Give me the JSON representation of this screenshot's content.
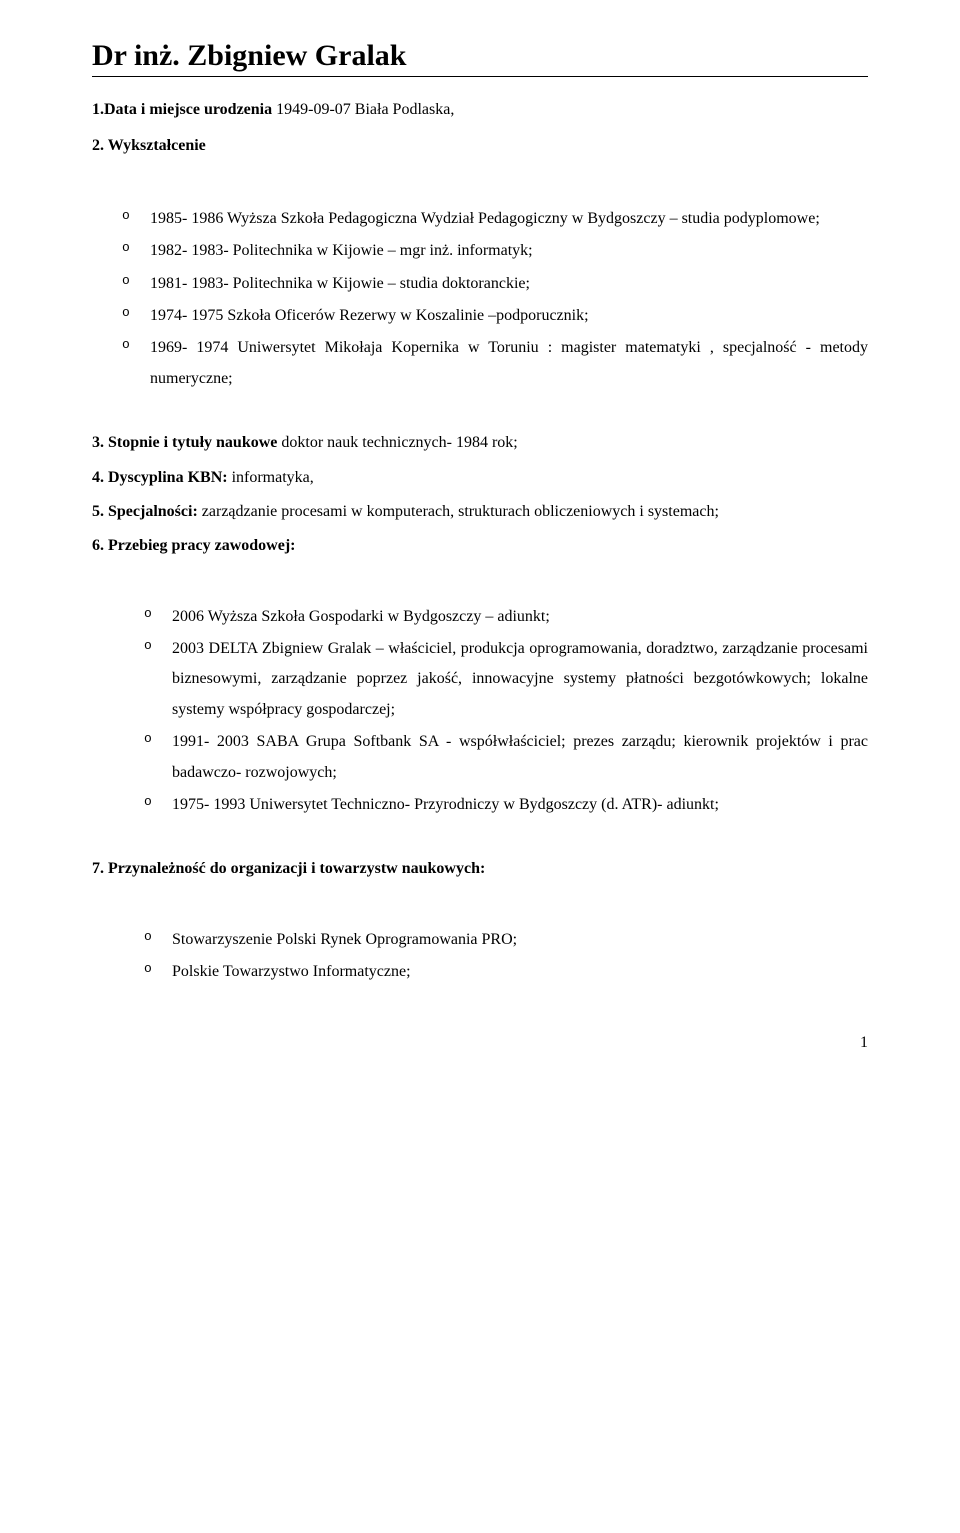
{
  "title": "Dr inż. Zbigniew Gralak",
  "sections": {
    "s1": {
      "label": "1.Data i miejsce urodzenia",
      "rest": "  1949-09-07 Biała Podlaska,"
    },
    "s2": {
      "label": "2. Wykształcenie"
    },
    "s2_items": [
      "1985- 1986 Wyższa Szkoła Pedagogiczna Wydział Pedagogiczny w Bydgoszczy – studia podyplomowe;",
      "1982- 1983- Politechnika w  Kijowie – mgr inż. informatyk;",
      "1981- 1983- Politechnika w Kijowie – studia doktoranckie;",
      "1974- 1975  Szkoła Oficerów Rezerwy w Koszalinie –podporucznik;",
      "1969- 1974  Uniwersytet Mikołaja Kopernika w Toruniu : magister matematyki , specjalność - metody numeryczne;"
    ],
    "s3": {
      "label": "3. Stopnie i tytuły naukowe",
      "rest": "  doktor nauk technicznych-  1984 rok;"
    },
    "s4": {
      "label": "4. Dyscyplina KBN:",
      "rest": " informatyka,"
    },
    "s5": {
      "label": "5. Specjalności:",
      "rest": " zarządzanie procesami w komputerach, strukturach obliczeniowych i systemach;"
    },
    "s6": {
      "label": "6. Przebieg pracy zawodowej:"
    },
    "s6_items": [
      "2006  Wyższa Szkoła Gospodarki w Bydgoszczy – adiunkt;",
      "2003 DELTA Zbigniew Gralak – właściciel, produkcja oprogramowania, doradztwo, zarządzanie procesami biznesowymi, zarządzanie poprzez jakość, innowacyjne systemy płatności bezgotówkowych; lokalne systemy współpracy gospodarczej;",
      "1991- 2003 SABA Grupa Softbank SA  - współwłaściciel; prezes zarządu; kierownik projektów i prac badawczo- rozwojowych;",
      "1975- 1993 Uniwersytet Techniczno- Przyrodniczy w Bydgoszczy (d. ATR)- adiunkt;"
    ],
    "s7": {
      "label": "7. Przynależność do organizacji i towarzystw naukowych:"
    },
    "s7_items": [
      "Stowarzyszenie Polski Rynek Oprogramowania PRO;",
      "Polskie Towarzystwo Informatyczne;"
    ]
  },
  "page_number": "1"
}
